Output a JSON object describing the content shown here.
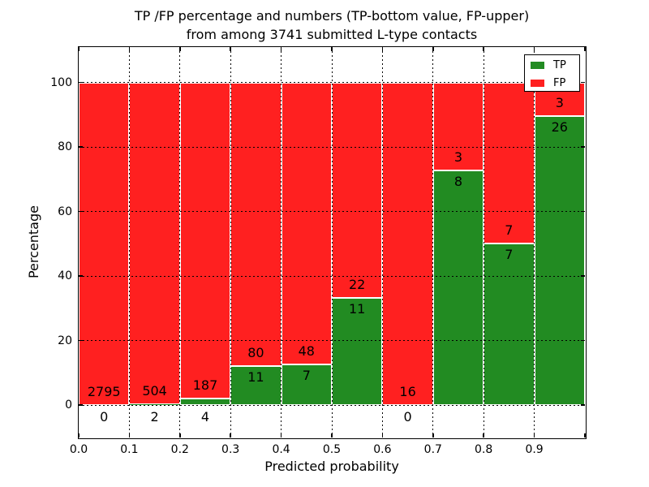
{
  "chart_data": {
    "type": "bar",
    "stacked": true,
    "title": "TP /FP percentage and numbers (TP-bottom value, FP-upper) from among 3741 submitted L-type contacts",
    "title_lines": [
      "TP /FP percentage and numbers (TP-bottom value, FP-upper)",
      "from among 3741 submitted L-type contacts"
    ],
    "xlabel": "Predicted probability",
    "ylabel": "Percentage",
    "total_submitted": 3741,
    "xlim": [
      0.0,
      1.0
    ],
    "ylim": [
      -10,
      111
    ],
    "grid": "dotted",
    "legend_position": "upper right",
    "bin_edges": [
      0.0,
      0.1,
      0.2,
      0.3,
      0.4,
      0.5,
      0.6,
      0.7,
      0.8,
      0.9,
      1.0
    ],
    "x_tick_labels": [
      "0.0",
      "0.1",
      "0.2",
      "0.3",
      "0.4",
      "0.5",
      "0.6",
      "0.7",
      "0.8",
      "0.9"
    ],
    "y_ticks": [
      0,
      20,
      40,
      60,
      80,
      100
    ],
    "y_tick_labels": [
      "0",
      "20",
      "40",
      "60",
      "80",
      "100"
    ],
    "colors": {
      "tp": "#228B22",
      "fp": "#FF2020"
    },
    "series": [
      {
        "name": "TP",
        "color": "#228B22",
        "values": [
          0,
          2,
          4,
          11,
          7,
          11,
          0,
          8,
          7,
          26
        ]
      },
      {
        "name": "FP",
        "color": "#FF2020",
        "values": [
          2795,
          504,
          187,
          80,
          48,
          22,
          16,
          3,
          7,
          3
        ]
      }
    ],
    "bins": [
      {
        "range": "0.0-0.1",
        "tp": 0,
        "fp": 2795
      },
      {
        "range": "0.1-0.2",
        "tp": 2,
        "fp": 504
      },
      {
        "range": "0.2-0.3",
        "tp": 4,
        "fp": 187
      },
      {
        "range": "0.3-0.4",
        "tp": 11,
        "fp": 80
      },
      {
        "range": "0.4-0.5",
        "tp": 7,
        "fp": 48
      },
      {
        "range": "0.5-0.6",
        "tp": 11,
        "fp": 22
      },
      {
        "range": "0.6-0.7",
        "tp": 0,
        "fp": 16
      },
      {
        "range": "0.7-0.8",
        "tp": 8,
        "fp": 3
      },
      {
        "range": "0.8-0.9",
        "tp": 7,
        "fp": 7
      },
      {
        "range": "0.9-1.0",
        "tp": 26,
        "fp": 3
      }
    ]
  }
}
